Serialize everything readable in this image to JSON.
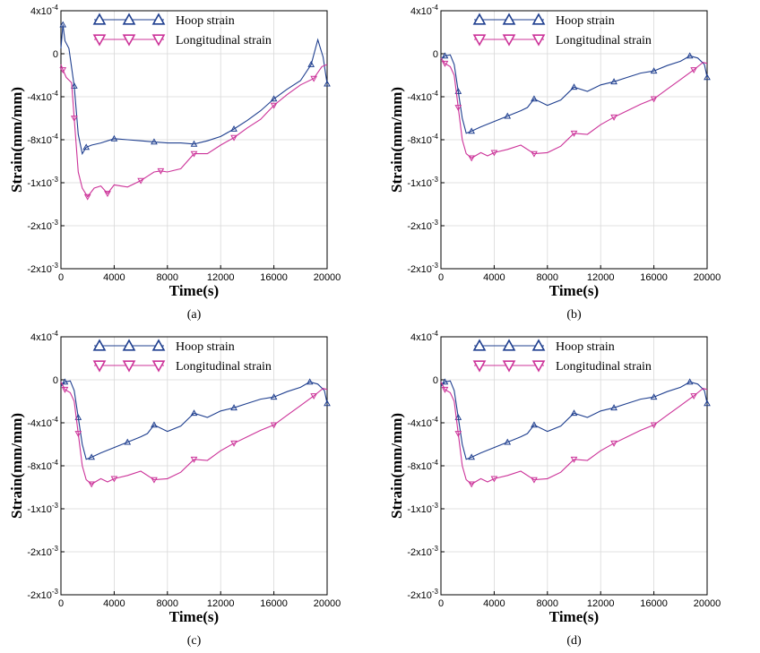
{
  "figure": {
    "captions": [
      "(a)",
      "(b)",
      "(c)",
      "(d)"
    ]
  },
  "chart_data": [
    {
      "type": "line",
      "panel": "(a)",
      "xlabel": "Time(s)",
      "ylabel": "Strain(mm/mm)",
      "xlim": [
        0,
        20000
      ],
      "ylim": [
        -0.002,
        0.0004
      ],
      "xticks": [
        "0",
        "4000",
        "8000",
        "12000",
        "16000",
        "20000"
      ],
      "yticks": [
        {
          "value": 0.0004,
          "mantissa": "4x10",
          "exp": "-4"
        },
        {
          "value": 0,
          "mantissa": "0",
          "exp": ""
        },
        {
          "value": -0.0004,
          "mantissa": "-4x10",
          "exp": "-4"
        },
        {
          "value": -0.0008,
          "mantissa": "-8x10",
          "exp": "-4"
        },
        {
          "value": -0.0012,
          "mantissa": "-1x10",
          "exp": "-3"
        },
        {
          "value": -0.0016,
          "mantissa": "-2x10",
          "exp": "-3"
        },
        {
          "value": -0.002,
          "mantissa": "-2x10",
          "exp": "-3"
        }
      ],
      "grid": true,
      "legend_position": "top",
      "series": [
        {
          "name": "Hoop strain",
          "color": "#1f3f8f",
          "marker": "triangle-up",
          "x": [
            0,
            150,
            300,
            600,
            1000,
            1300,
            1600,
            1900,
            2300,
            3000,
            4000,
            5000,
            6000,
            7000,
            8000,
            9000,
            10000,
            11000,
            12000,
            13000,
            14000,
            15000,
            16000,
            17000,
            18000,
            18800,
            19300,
            19700,
            20000
          ],
          "y": [
            5e-05,
            0.00027,
            0.00012,
            5e-05,
            -0.0003,
            -0.00075,
            -0.00093,
            -0.00087,
            -0.00085,
            -0.00083,
            -0.00079,
            -0.0008,
            -0.00081,
            -0.00082,
            -0.00083,
            -0.00083,
            -0.00084,
            -0.00081,
            -0.00077,
            -0.0007,
            -0.00062,
            -0.00053,
            -0.00042,
            -0.00033,
            -0.00025,
            -0.0001,
            0.00013,
            -3e-05,
            -0.00028
          ]
        },
        {
          "name": "Longitudinal strain",
          "color": "#cc3399",
          "marker": "triangle-down",
          "x": [
            0,
            150,
            400,
            800,
            1000,
            1300,
            1600,
            2000,
            2500,
            3000,
            3500,
            4000,
            5000,
            6000,
            6500,
            7000,
            7500,
            8000,
            9000,
            10000,
            11000,
            12000,
            13000,
            14000,
            15000,
            16000,
            17000,
            18000,
            19000,
            19600,
            20000
          ],
          "y": [
            -0.0001,
            -0.00015,
            -0.00022,
            -0.00027,
            -0.0006,
            -0.0011,
            -0.00125,
            -0.00133,
            -0.00125,
            -0.00123,
            -0.0013,
            -0.00122,
            -0.00124,
            -0.00118,
            -0.00114,
            -0.0011,
            -0.00109,
            -0.0011,
            -0.00107,
            -0.00093,
            -0.00093,
            -0.00085,
            -0.00078,
            -0.00069,
            -0.00061,
            -0.00048,
            -0.00038,
            -0.00029,
            -0.00023,
            -0.00012,
            -0.0001
          ]
        }
      ]
    },
    {
      "type": "line",
      "panel": "(b)",
      "xlabel": "Time(s)",
      "ylabel": "Strain(mm/mm)",
      "xlim": [
        0,
        20000
      ],
      "ylim": [
        -0.002,
        0.0004
      ],
      "xticks": [
        "0",
        "4000",
        "8000",
        "12000",
        "16000",
        "20000"
      ],
      "yticks": [
        {
          "value": 0.0004,
          "mantissa": "4x10",
          "exp": "-4"
        },
        {
          "value": 0,
          "mantissa": "0",
          "exp": ""
        },
        {
          "value": -0.0004,
          "mantissa": "-4x10",
          "exp": "-4"
        },
        {
          "value": -0.0008,
          "mantissa": "-8x10",
          "exp": "-4"
        },
        {
          "value": -0.0012,
          "mantissa": "-1x10",
          "exp": "-3"
        },
        {
          "value": -0.0016,
          "mantissa": "-2x10",
          "exp": "-3"
        },
        {
          "value": -0.002,
          "mantissa": "-2x10",
          "exp": "-3"
        }
      ],
      "grid": true,
      "legend_position": "top",
      "series": [
        {
          "name": "Hoop strain",
          "color": "#1f3f8f",
          "marker": "triangle-up",
          "x": [
            0,
            300,
            700,
            1000,
            1300,
            1600,
            1900,
            2300,
            3000,
            4000,
            5000,
            6000,
            6500,
            7000,
            8000,
            9000,
            10000,
            11000,
            12000,
            13000,
            14000,
            15000,
            16000,
            17000,
            18000,
            18700,
            19300,
            19800,
            20000
          ],
          "y": [
            -5e-05,
            -2e-05,
            -1e-05,
            -0.0001,
            -0.00035,
            -0.0006,
            -0.00074,
            -0.00072,
            -0.00068,
            -0.00063,
            -0.00058,
            -0.00053,
            -0.0005,
            -0.00042,
            -0.00048,
            -0.00043,
            -0.00031,
            -0.00035,
            -0.00029,
            -0.00026,
            -0.00022,
            -0.00018,
            -0.00016,
            -0.00011,
            -7e-05,
            -2e-05,
            -4e-05,
            -0.0001,
            -0.00022
          ]
        },
        {
          "name": "Longitudinal strain",
          "color": "#cc3399",
          "marker": "triangle-down",
          "x": [
            0,
            300,
            700,
            1000,
            1300,
            1600,
            1900,
            2300,
            3000,
            3500,
            4000,
            5000,
            6000,
            7000,
            8000,
            9000,
            10000,
            11000,
            12000,
            13000,
            14000,
            15000,
            16000,
            17000,
            18000,
            19000,
            19700,
            20000
          ],
          "y": [
            -4e-05,
            -9e-05,
            -0.00012,
            -0.0002,
            -0.0005,
            -0.0008,
            -0.00093,
            -0.00097,
            -0.00092,
            -0.00095,
            -0.00092,
            -0.00089,
            -0.00085,
            -0.00093,
            -0.00092,
            -0.00086,
            -0.00074,
            -0.00075,
            -0.00066,
            -0.00059,
            -0.00053,
            -0.00047,
            -0.00042,
            -0.00033,
            -0.00024,
            -0.00015,
            -8e-05,
            -9e-05
          ]
        }
      ]
    },
    {
      "type": "line",
      "panel": "(c)",
      "xlabel": "Time(s)",
      "ylabel": "Strain(mm/mm)",
      "xlim": [
        0,
        20000
      ],
      "ylim": [
        -0.002,
        0.0004
      ],
      "xticks": [
        "0",
        "4000",
        "8000",
        "12000",
        "16000",
        "20000"
      ],
      "yticks": [
        {
          "value": 0.0004,
          "mantissa": "4x10",
          "exp": "-4"
        },
        {
          "value": 0,
          "mantissa": "0",
          "exp": ""
        },
        {
          "value": -0.0004,
          "mantissa": "-4x10",
          "exp": "-4"
        },
        {
          "value": -0.0008,
          "mantissa": "-8x10",
          "exp": "-4"
        },
        {
          "value": -0.0012,
          "mantissa": "-1x10",
          "exp": "-3"
        },
        {
          "value": -0.0016,
          "mantissa": "-2x10",
          "exp": "-3"
        },
        {
          "value": -0.002,
          "mantissa": "-2x10",
          "exp": "-3"
        }
      ],
      "grid": true,
      "legend_position": "top",
      "series": [
        {
          "name": "Hoop strain",
          "color": "#1f3f8f",
          "marker": "triangle-up",
          "x": [
            0,
            300,
            700,
            1000,
            1300,
            1600,
            1900,
            2300,
            3000,
            4000,
            5000,
            6000,
            6500,
            7000,
            8000,
            9000,
            10000,
            11000,
            12000,
            13000,
            14000,
            15000,
            16000,
            17000,
            18000,
            18700,
            19300,
            19800,
            20000
          ],
          "y": [
            -6e-05,
            -2e-05,
            -1e-05,
            -0.0001,
            -0.00035,
            -0.0006,
            -0.00074,
            -0.00072,
            -0.00068,
            -0.00063,
            -0.00058,
            -0.00053,
            -0.0005,
            -0.00042,
            -0.00048,
            -0.00043,
            -0.00031,
            -0.00035,
            -0.00029,
            -0.00026,
            -0.00022,
            -0.00018,
            -0.00016,
            -0.00011,
            -7e-05,
            -2e-05,
            -4e-05,
            -0.0001,
            -0.00022
          ]
        },
        {
          "name": "Longitudinal strain",
          "color": "#cc3399",
          "marker": "triangle-down",
          "x": [
            0,
            300,
            700,
            1000,
            1300,
            1600,
            1900,
            2300,
            3000,
            3500,
            4000,
            5000,
            6000,
            7000,
            8000,
            9000,
            10000,
            11000,
            12000,
            13000,
            14000,
            15000,
            16000,
            17000,
            18000,
            19000,
            19700,
            20000
          ],
          "y": [
            -2e-05,
            -9e-05,
            -0.00012,
            -0.0002,
            -0.0005,
            -0.0008,
            -0.00093,
            -0.00097,
            -0.00092,
            -0.00095,
            -0.00092,
            -0.00089,
            -0.00085,
            -0.00093,
            -0.00092,
            -0.00086,
            -0.00074,
            -0.00075,
            -0.00066,
            -0.00059,
            -0.00053,
            -0.00047,
            -0.00042,
            -0.00033,
            -0.00024,
            -0.00015,
            -8e-05,
            -9e-05
          ]
        }
      ]
    },
    {
      "type": "line",
      "panel": "(d)",
      "xlabel": "Time(s)",
      "ylabel": "Strain(mm/mm)",
      "xlim": [
        0,
        20000
      ],
      "ylim": [
        -0.002,
        0.0004
      ],
      "xticks": [
        "0",
        "4000",
        "8000",
        "12000",
        "16000",
        "20000"
      ],
      "yticks": [
        {
          "value": 0.0004,
          "mantissa": "4x10",
          "exp": "-4"
        },
        {
          "value": 0,
          "mantissa": "0",
          "exp": ""
        },
        {
          "value": -0.0004,
          "mantissa": "-4x10",
          "exp": "-4"
        },
        {
          "value": -0.0008,
          "mantissa": "-8x10",
          "exp": "-4"
        },
        {
          "value": -0.0012,
          "mantissa": "-1x10",
          "exp": "-3"
        },
        {
          "value": -0.0016,
          "mantissa": "-2x10",
          "exp": "-3"
        },
        {
          "value": -0.002,
          "mantissa": "-2x10",
          "exp": "-3"
        }
      ],
      "grid": true,
      "legend_position": "top",
      "series": [
        {
          "name": "Hoop strain",
          "color": "#1f3f8f",
          "marker": "triangle-up",
          "x": [
            0,
            300,
            700,
            1000,
            1300,
            1600,
            1900,
            2300,
            3000,
            4000,
            5000,
            6000,
            6500,
            7000,
            8000,
            9000,
            10000,
            11000,
            12000,
            13000,
            14000,
            15000,
            16000,
            17000,
            18000,
            18700,
            19300,
            19800,
            20000
          ],
          "y": [
            -6e-05,
            -2e-05,
            -1e-05,
            -0.0001,
            -0.00035,
            -0.0006,
            -0.00074,
            -0.00072,
            -0.00068,
            -0.00063,
            -0.00058,
            -0.00053,
            -0.0005,
            -0.00042,
            -0.00048,
            -0.00043,
            -0.00031,
            -0.00035,
            -0.00029,
            -0.00026,
            -0.00022,
            -0.00018,
            -0.00016,
            -0.00011,
            -7e-05,
            -2e-05,
            -4e-05,
            -0.0001,
            -0.00022
          ]
        },
        {
          "name": "Longitudinal strain",
          "color": "#cc3399",
          "marker": "triangle-down",
          "x": [
            0,
            300,
            700,
            1000,
            1300,
            1600,
            1900,
            2300,
            3000,
            3500,
            4000,
            5000,
            6000,
            7000,
            8000,
            9000,
            10000,
            11000,
            12000,
            13000,
            14000,
            15000,
            16000,
            17000,
            18000,
            19000,
            19700,
            20000
          ],
          "y": [
            -2e-05,
            -9e-05,
            -0.00012,
            -0.0002,
            -0.0005,
            -0.0008,
            -0.00093,
            -0.00097,
            -0.00092,
            -0.00095,
            -0.00092,
            -0.00089,
            -0.00085,
            -0.00093,
            -0.00092,
            -0.00086,
            -0.00074,
            -0.00075,
            -0.00066,
            -0.00059,
            -0.00053,
            -0.00047,
            -0.00042,
            -0.00033,
            -0.00024,
            -0.00015,
            -8e-05,
            -9e-05
          ]
        }
      ]
    }
  ]
}
